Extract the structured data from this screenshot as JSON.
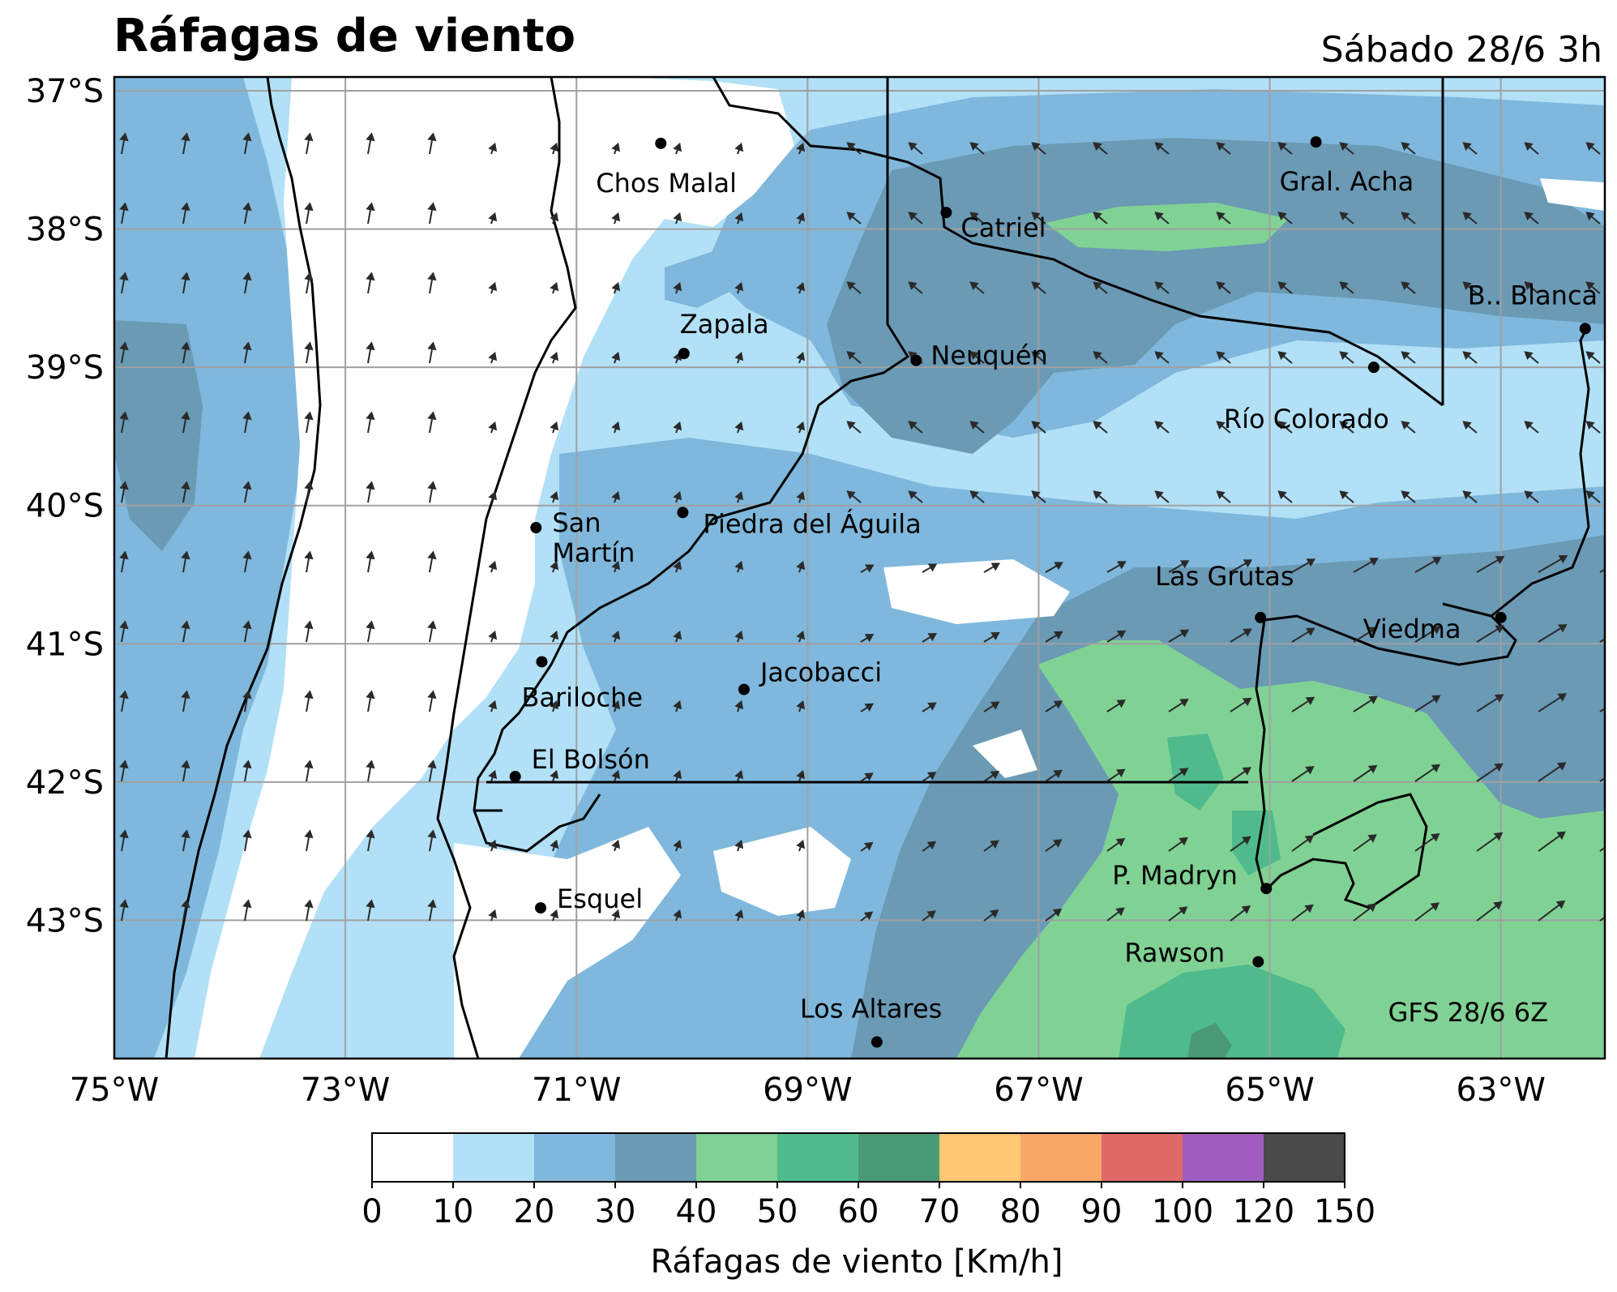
{
  "header": {
    "title": "Ráfagas de viento",
    "datetime": "Sábado 28/6 3h"
  },
  "map": {
    "lon_range": [
      -75,
      -62.1
    ],
    "lat_range": [
      -36.9,
      -44
    ],
    "lon_ticks": [
      {
        "lon": -75,
        "label": "75°W"
      },
      {
        "lon": -73,
        "label": "73°W"
      },
      {
        "lon": -71,
        "label": "71°W"
      },
      {
        "lon": -69,
        "label": "69°W"
      },
      {
        "lon": -67,
        "label": "67°W"
      },
      {
        "lon": -65,
        "label": "65°W"
      },
      {
        "lon": -63,
        "label": "63°W"
      }
    ],
    "lat_ticks": [
      {
        "lat": -37,
        "label": "37°S"
      },
      {
        "lat": -38,
        "label": "38°S"
      },
      {
        "lat": -39,
        "label": "39°S"
      },
      {
        "lat": -40,
        "label": "40°S"
      },
      {
        "lat": -41,
        "label": "41°S"
      },
      {
        "lat": -42,
        "label": "42°S"
      },
      {
        "lat": -43,
        "label": "43°S"
      }
    ],
    "source_label": "GFS 28/6 6Z",
    "cities": [
      {
        "name": "Chos Malal",
        "lon": -70.27,
        "lat": -37.38
      },
      {
        "name": "Gral. Acha",
        "lon": -64.6,
        "lat": -37.37
      },
      {
        "name": "Catriel",
        "lon": -67.8,
        "lat": -37.88
      },
      {
        "name": "B.. Blanca",
        "lon": -62.27,
        "lat": -38.72
      },
      {
        "name": "Zapala",
        "lon": -70.07,
        "lat": -38.9
      },
      {
        "name": "Neuquén",
        "lon": -68.06,
        "lat": -38.95
      },
      {
        "name": "Río Colorado",
        "lon": -64.1,
        "lat": -39.0
      },
      {
        "name": "San Martín",
        "lon": -71.35,
        "lat": -40.16
      },
      {
        "name": "Piedra del Águila",
        "lon": -70.08,
        "lat": -40.05
      },
      {
        "name": "Las Grutas",
        "lon": -65.08,
        "lat": -40.81
      },
      {
        "name": "Viedma",
        "lon": -63.0,
        "lat": -40.81
      },
      {
        "name": "Bariloche",
        "lon": -71.3,
        "lat": -41.13
      },
      {
        "name": "Jacobacci",
        "lon": -69.55,
        "lat": -41.33
      },
      {
        "name": "El Bolsón",
        "lon": -71.53,
        "lat": -41.96
      },
      {
        "name": "P. Madryn",
        "lon": -65.03,
        "lat": -42.77
      },
      {
        "name": "Esquel",
        "lon": -71.31,
        "lat": -42.91
      },
      {
        "name": "Rawson",
        "lon": -65.1,
        "lat": -43.3
      },
      {
        "name": "Los Altares",
        "lon": -68.4,
        "lat": -43.88
      }
    ],
    "colors": {
      "c0": "#ffffff",
      "c10": "#b2e0f7",
      "c20": "#7fb8dc",
      "c30": "#6b9ab5",
      "c40": "#80d294",
      "c50": "#4fbb8d",
      "c60": "#4b9a76",
      "border": "#000000",
      "arrow": "#2a2a2a"
    }
  },
  "colorbar": {
    "label": "Ráfagas de viento [Km/h]",
    "ticks": [
      "0",
      "10",
      "20",
      "30",
      "40",
      "50",
      "60",
      "70",
      "80",
      "90",
      "100",
      "120",
      "150"
    ],
    "colors": [
      "#ffffff",
      "#b2e0f7",
      "#7fb8dc",
      "#6b9ab5",
      "#80d294",
      "#4fbb8d",
      "#4b9a76",
      "#fdc774",
      "#f8a868",
      "#df6b69",
      "#9f5ebf",
      "#4a4a4a"
    ]
  }
}
